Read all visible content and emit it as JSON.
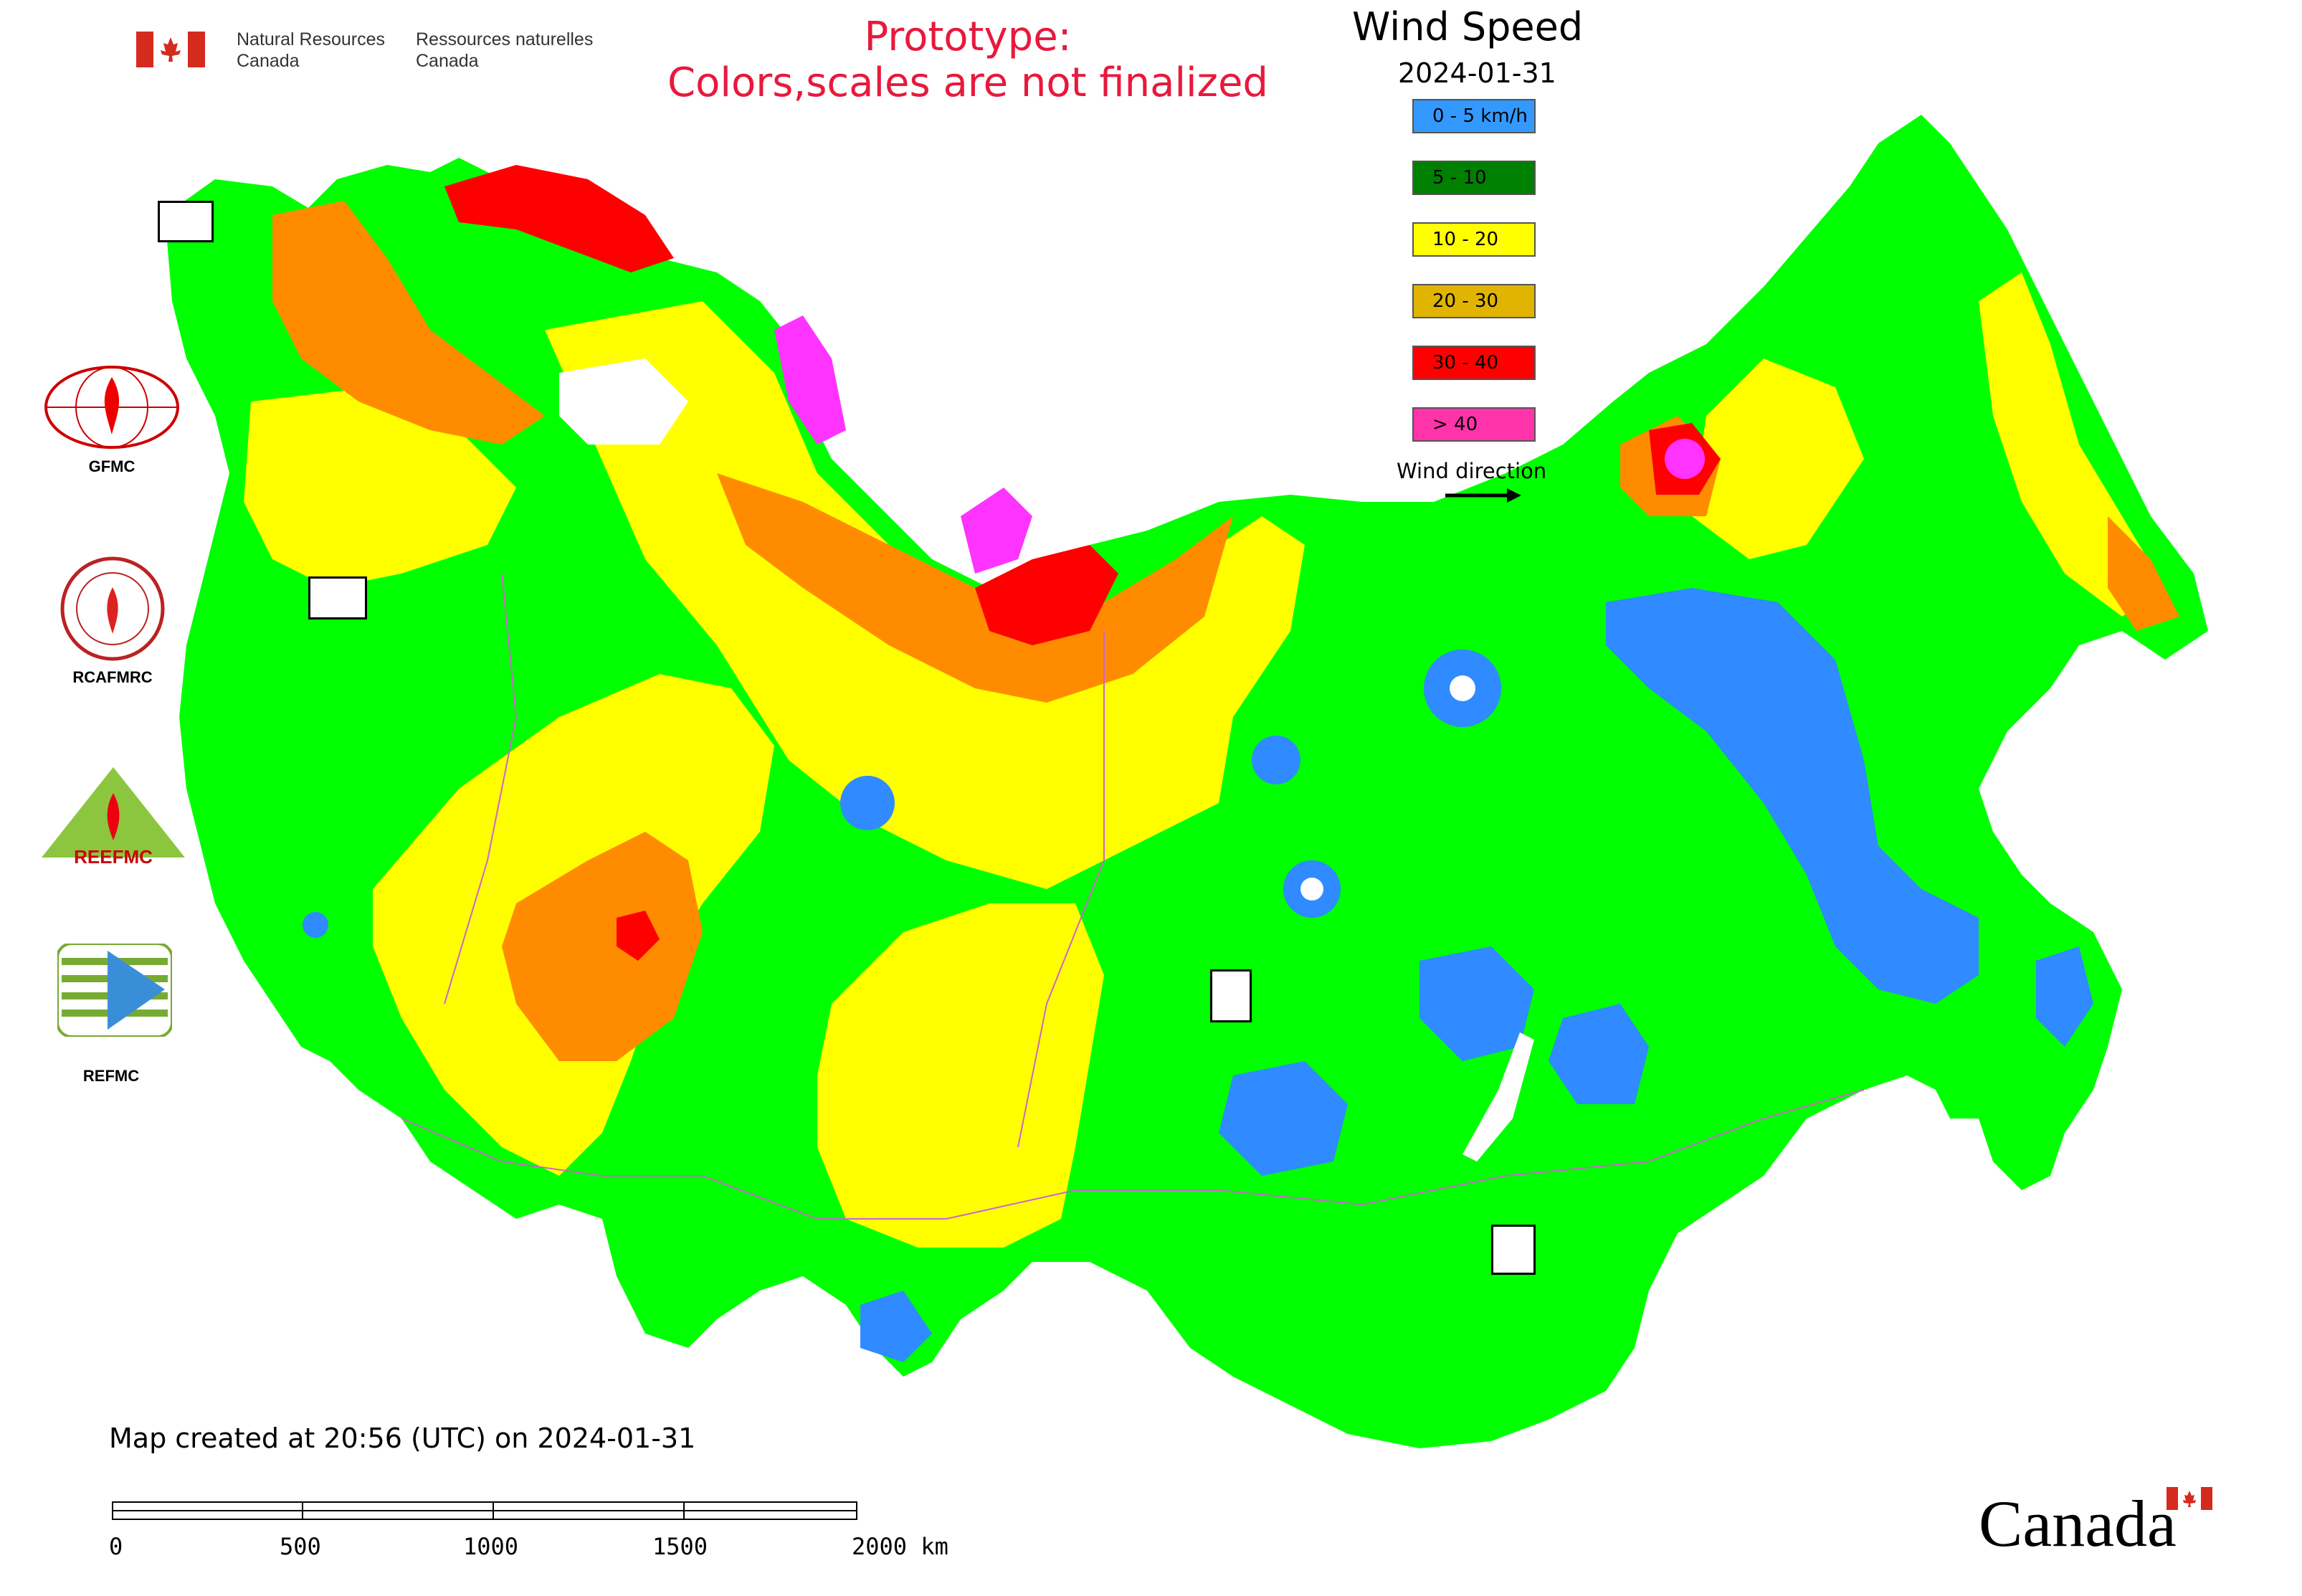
{
  "header": {
    "nrcan_en_line1": "Natural Resources",
    "nrcan_en_line2": "Canada",
    "nrcan_fr_line1": "Ressources naturelles",
    "nrcan_fr_line2": "Canada",
    "prototype_line1": "Prototype:",
    "prototype_line2": "Colors,scales are not finalized"
  },
  "legend": {
    "title": "Wind Speed",
    "date": "2024-01-31",
    "items": [
      {
        "label": "0 - 5 km/h",
        "color": "#3399ff"
      },
      {
        "label": "5 - 10",
        "color": "#008000"
      },
      {
        "label": "10 - 20",
        "color": "#ffff00"
      },
      {
        "label": "20 - 30",
        "color": "#e0b400"
      },
      {
        "label": "30 - 40",
        "color": "#ff0000"
      },
      {
        "label": "> 40",
        "color": "#ff33aa"
      }
    ],
    "wind_direction_label": "Wind direction"
  },
  "organizations": [
    {
      "label": "GFMC"
    },
    {
      "label": "RCAFMRC"
    },
    {
      "label": "REEFMC"
    },
    {
      "label": "REFMC"
    }
  ],
  "map_colors": {
    "blue": "#2f8bff",
    "green": "#00ff00",
    "yellow": "#ffff00",
    "orange": "#ff8c00",
    "red": "#ff0000",
    "magenta": "#ff33ff",
    "boundary": "#cc66cc"
  },
  "footer": {
    "created": "Map created at 20:56 (UTC) on 2024-01-31",
    "scale_ticks": [
      "0",
      "500",
      "1000",
      "1500",
      "2000 km"
    ],
    "canada_wordmark": "Canada"
  }
}
